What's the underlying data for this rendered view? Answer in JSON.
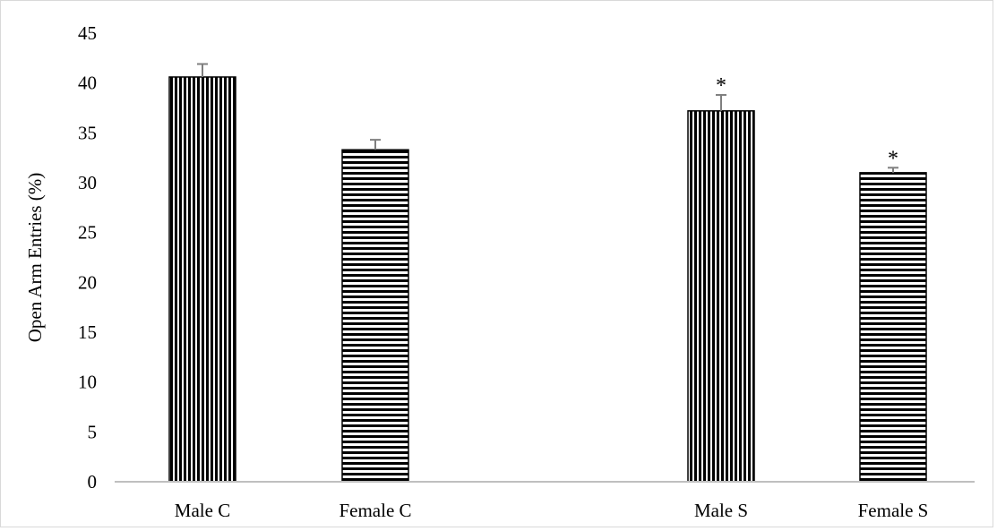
{
  "chart_data": {
    "type": "bar",
    "title": "",
    "xlabel": "",
    "ylabel": "Open Arm Entries (%)",
    "ylim": [
      0,
      45
    ],
    "yticks": [
      0,
      5,
      10,
      15,
      20,
      25,
      30,
      35,
      40,
      45
    ],
    "grid": false,
    "legend": "none",
    "categories": [
      "Male C",
      "Female C",
      "Male S",
      "Female S"
    ],
    "values": [
      40.6,
      33.3,
      37.2,
      31.0
    ],
    "errors": [
      1.3,
      1.0,
      1.6,
      0.5
    ],
    "patterns": [
      "vertical-stripes",
      "horizontal-stripes",
      "vertical-stripes",
      "horizontal-stripes"
    ],
    "annotations": [
      "",
      "",
      "*",
      "*"
    ],
    "colors": {
      "stripe": "#000000",
      "background": "#ffffff",
      "error_bar": "#7f7f7f",
      "axis": "#bfbfbf"
    }
  }
}
